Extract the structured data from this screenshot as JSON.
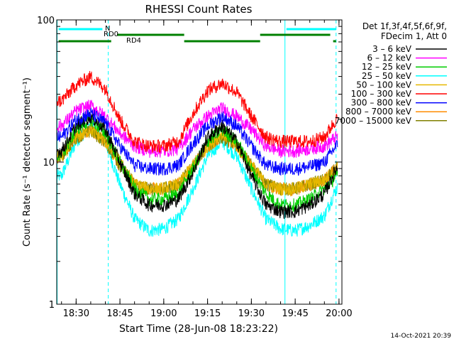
{
  "chart_data": {
    "type": "line",
    "title": "RHESSI Count Rates",
    "xlabel": "Start Time (28-Jun-08 18:23:22)",
    "ylabel": "Count Rate (s⁻¹ detector segment⁻¹)",
    "y_scale": "log",
    "ylim": [
      1,
      100
    ],
    "xlim": [
      "18:23:22",
      "20:01:00"
    ],
    "x_ticks": [
      "18:30",
      "18:45",
      "19:00",
      "19:15",
      "19:30",
      "19:45",
      "20:00"
    ],
    "y_ticks": [
      "1",
      "10",
      "100"
    ],
    "legend_title": [
      "Det 1f,3f,4f,5f,6f,9f,",
      "FDecim 1, Att 0"
    ],
    "legend_placement": "right",
    "timestamp": "14-Oct-2021 20:39",
    "x": [
      "18:25",
      "18:30",
      "18:35",
      "18:40",
      "18:45",
      "18:50",
      "18:55",
      "19:00",
      "19:05",
      "19:10",
      "19:15",
      "19:20",
      "19:25",
      "19:30",
      "19:35",
      "19:40",
      "19:45",
      "19:50",
      "19:55",
      "19:59"
    ],
    "series": [
      {
        "name": "3 – 6 keV",
        "color": "#000000",
        "values": [
          12,
          18,
          21,
          17,
          10,
          6,
          5,
          5,
          5.5,
          8.5,
          15,
          18,
          14,
          8,
          5,
          4.5,
          4.5,
          5,
          6,
          9
        ]
      },
      {
        "name": "6 – 12 keV",
        "color": "#ff00ff",
        "values": [
          18,
          23,
          25,
          21,
          16,
          13,
          12,
          12,
          12.5,
          17,
          21,
          24,
          21,
          17,
          13,
          12,
          12,
          12.5,
          13,
          15
        ]
      },
      {
        "name": "12 – 25 keV",
        "color": "#00cc00",
        "values": [
          11,
          17,
          20,
          16,
          10,
          6.5,
          5.5,
          5.5,
          6,
          9,
          14,
          17,
          14,
          9,
          6,
          5,
          5,
          5.5,
          6.5,
          8
        ]
      },
      {
        "name": "25 – 50 keV",
        "color": "#00ffff",
        "values": [
          8,
          14,
          18,
          14,
          7,
          4,
          3.3,
          3.4,
          4,
          6.5,
          11,
          14,
          11,
          6.5,
          4,
          3.4,
          3.3,
          3.6,
          4.2,
          6.5
        ]
      },
      {
        "name": "50 – 100 keV",
        "color": "#e6b800",
        "values": [
          11,
          15,
          17,
          14,
          10,
          7,
          6.5,
          6.5,
          7,
          9.5,
          13,
          16,
          13,
          9.5,
          7,
          6.5,
          6.5,
          7,
          7.5,
          9
        ]
      },
      {
        "name": "100 – 300 keV",
        "color": "#ff0000",
        "values": [
          27,
          35,
          40,
          33,
          20,
          14,
          13,
          13,
          14,
          22,
          32,
          36,
          31,
          21,
          15,
          14,
          14,
          14,
          15,
          20
        ]
      },
      {
        "name": "300 – 800 keV",
        "color": "#0000ff",
        "values": [
          15,
          20,
          22,
          19,
          13,
          9.5,
          9,
          9,
          9.5,
          13.5,
          18,
          21,
          18,
          13,
          9.5,
          9,
          9,
          9.3,
          10,
          13
        ]
      },
      {
        "name": "800 – 7000 keV",
        "color": "#ff8c00",
        "values": [
          11,
          15,
          17,
          14,
          9.5,
          7,
          6.5,
          6.5,
          7,
          9.5,
          13,
          15.5,
          13,
          9.5,
          7,
          6.5,
          6.5,
          7,
          7.5,
          9
        ]
      },
      {
        "name": "7000 – 15000 keV",
        "color": "#808000",
        "values": [
          11,
          15,
          16.5,
          14,
          9.5,
          7,
          6.5,
          6.5,
          7,
          9.5,
          13,
          15,
          13,
          9.5,
          7,
          6.5,
          6.5,
          7,
          7.5,
          9
        ]
      }
    ],
    "vertical_lines": [
      {
        "time": "18:23:30",
        "style": "solid",
        "color": "#00ffff"
      },
      {
        "time": "18:41:00",
        "style": "dashed",
        "color": "#00ffff"
      },
      {
        "time": "19:41:30",
        "style": "solid",
        "color": "#00ffff"
      },
      {
        "time": "19:59:00",
        "style": "dashed",
        "color": "#00ffff"
      }
    ],
    "flag_bars": [
      {
        "label": "N",
        "color": "#00ffff",
        "intervals": [
          [
            "18:24",
            "18:39"
          ],
          [
            "19:42",
            "19:59"
          ]
        ]
      },
      {
        "label": "RD0",
        "color": "#008000",
        "intervals": [
          [
            "18:44",
            "19:07"
          ],
          [
            "19:33",
            "19:57"
          ]
        ]
      },
      {
        "label": "RD4",
        "color": "#008000",
        "intervals": [
          [
            "18:24",
            "18:42"
          ],
          [
            "19:07",
            "19:33"
          ],
          [
            "19:58",
            "19:59"
          ]
        ]
      }
    ]
  }
}
